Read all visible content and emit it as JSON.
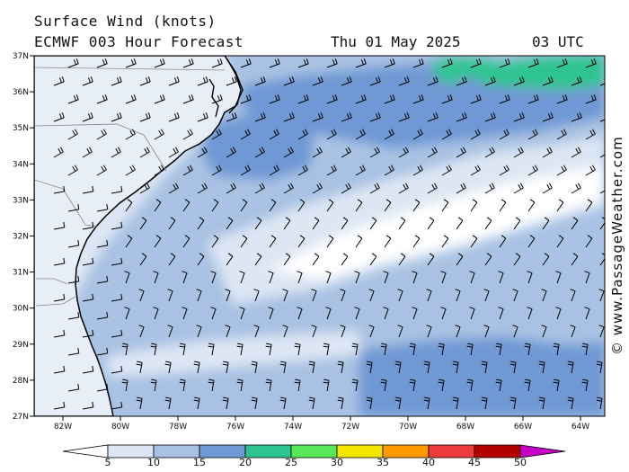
{
  "header": {
    "title": "Surface Wind (knots)",
    "subtitle": "ECMWF 003 Hour Forecast",
    "date": "Thu 01 May 2025",
    "time": "03 UTC"
  },
  "credit": "© www.PassageWeather.com",
  "axes": {
    "lat_labels": [
      "37N",
      "36N",
      "35N",
      "34N",
      "33N",
      "32N",
      "31N",
      "30N",
      "29N",
      "28N",
      "27N"
    ],
    "lon_labels": [
      "82W",
      "80W",
      "78W",
      "76W",
      "74W",
      "72W",
      "70W",
      "68W",
      "66W",
      "64W"
    ]
  },
  "colorbar": {
    "labels": [
      "5",
      "10",
      "15",
      "20",
      "25",
      "30",
      "35",
      "40",
      "45",
      "50"
    ],
    "colors": [
      "#ffffff",
      "#dde6f4",
      "#a9c2e3",
      "#6f98d4",
      "#2ec490",
      "#58e858",
      "#f2e600",
      "#ff9900",
      "#ee3b3b",
      "#b50000",
      "#c400c4"
    ]
  }
}
